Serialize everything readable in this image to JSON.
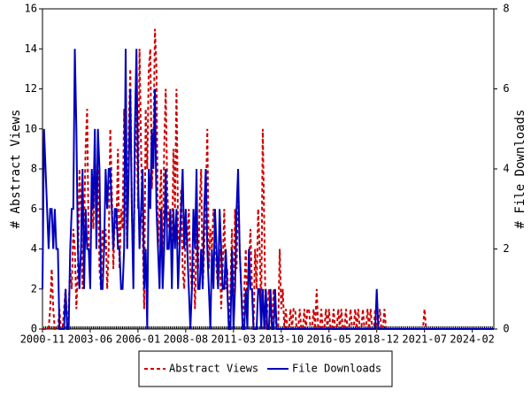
{
  "chart_data": {
    "type": "line",
    "y_label": "# Abstract Views",
    "y2_label": "# File Downloads",
    "x": [
      "2000-11",
      "2000-12",
      "2001-01",
      "2001-02",
      "2001-03",
      "2001-04",
      "2001-05",
      "2001-06",
      "2001-07",
      "2001-08",
      "2001-09",
      "2001-10",
      "2001-11",
      "2001-12",
      "2002-01",
      "2002-02",
      "2002-03",
      "2002-04",
      "2002-05",
      "2002-06",
      "2002-07",
      "2002-08",
      "2002-09",
      "2002-10",
      "2002-11",
      "2002-12",
      "2003-01",
      "2003-02",
      "2003-03",
      "2003-04",
      "2003-05",
      "2003-06",
      "2003-07",
      "2003-08",
      "2003-09",
      "2003-10",
      "2003-11",
      "2003-12",
      "2004-01",
      "2004-02",
      "2004-03",
      "2004-04",
      "2004-05",
      "2004-06",
      "2004-07",
      "2004-08",
      "2004-09",
      "2004-10",
      "2004-11",
      "2004-12",
      "2005-01",
      "2005-02",
      "2005-03",
      "2005-04",
      "2005-05",
      "2005-06",
      "2005-07",
      "2005-08",
      "2005-09",
      "2005-10",
      "2005-11",
      "2005-12",
      "2006-01",
      "2006-02",
      "2006-03",
      "2006-04",
      "2006-05",
      "2006-06",
      "2006-07",
      "2006-08",
      "2006-09",
      "2006-10",
      "2006-11",
      "2006-12",
      "2007-01",
      "2007-02",
      "2007-03",
      "2007-04",
      "2007-05",
      "2007-06",
      "2007-07",
      "2007-08",
      "2007-09",
      "2007-10",
      "2007-11",
      "2007-12",
      "2008-01",
      "2008-02",
      "2008-03",
      "2008-04",
      "2008-05",
      "2008-06",
      "2008-07",
      "2008-08",
      "2008-09",
      "2008-10",
      "2008-11",
      "2008-12",
      "2009-01",
      "2009-02",
      "2009-03",
      "2009-04",
      "2009-05",
      "2009-06",
      "2009-07",
      "2009-08",
      "2009-09",
      "2009-10",
      "2009-11",
      "2009-12",
      "2010-01",
      "2010-02",
      "2010-03",
      "2010-04",
      "2010-05",
      "2010-06",
      "2010-07",
      "2010-08",
      "2010-09",
      "2010-10",
      "2010-11",
      "2010-12",
      "2011-01",
      "2011-02",
      "2011-03",
      "2011-04",
      "2011-05",
      "2011-06",
      "2011-07",
      "2011-08",
      "2011-09",
      "2011-10",
      "2011-11",
      "2011-12",
      "2012-01",
      "2012-02",
      "2012-03",
      "2012-04",
      "2012-05",
      "2012-06",
      "2012-07",
      "2012-08",
      "2012-09",
      "2012-10",
      "2012-11",
      "2012-12",
      "2013-01",
      "2013-02",
      "2013-03",
      "2013-04",
      "2013-05",
      "2013-06",
      "2013-07",
      "2013-08",
      "2013-09",
      "2013-10",
      "2013-11",
      "2013-12",
      "2014-01",
      "2014-02",
      "2014-03",
      "2014-04",
      "2014-05",
      "2014-06",
      "2014-07",
      "2014-08",
      "2014-09",
      "2014-10",
      "2014-11",
      "2014-12",
      "2015-01",
      "2015-02",
      "2015-03",
      "2015-04",
      "2015-05",
      "2015-06",
      "2015-07",
      "2015-08",
      "2015-09",
      "2015-10",
      "2015-11",
      "2015-12",
      "2016-01",
      "2016-02",
      "2016-03",
      "2016-04",
      "2016-05",
      "2016-06",
      "2016-07",
      "2016-08",
      "2016-09",
      "2016-10",
      "2016-11",
      "2016-12",
      "2017-01",
      "2017-02",
      "2017-03",
      "2017-04",
      "2017-05",
      "2017-06",
      "2017-07",
      "2017-08",
      "2017-09",
      "2017-10",
      "2017-11",
      "2017-12",
      "2018-01",
      "2018-02",
      "2018-03",
      "2018-04",
      "2018-05",
      "2018-06",
      "2018-07",
      "2018-08",
      "2018-09",
      "2018-10",
      "2018-11",
      "2018-12",
      "2019-01",
      "2019-02",
      "2019-03",
      "2019-04",
      "2019-05",
      "2019-06",
      "2019-07",
      "2019-08",
      "2019-09",
      "2019-10",
      "2019-11",
      "2019-12",
      "2020-01",
      "2020-02",
      "2020-03",
      "2020-04",
      "2020-05",
      "2020-06",
      "2020-07",
      "2020-08",
      "2020-09",
      "2020-10",
      "2020-11",
      "2020-12",
      "2021-01",
      "2021-02",
      "2021-03",
      "2021-04",
      "2021-05",
      "2021-06",
      "2021-07",
      "2021-08",
      "2021-09",
      "2021-10",
      "2021-11",
      "2021-12",
      "2022-01",
      "2022-02",
      "2022-03",
      "2022-04",
      "2022-05",
      "2022-06",
      "2022-07",
      "2022-08",
      "2022-09",
      "2022-10",
      "2022-11",
      "2022-12",
      "2023-01",
      "2023-02",
      "2023-03",
      "2023-04",
      "2023-05",
      "2023-06",
      "2023-07",
      "2023-08",
      "2023-09",
      "2023-10",
      "2023-11",
      "2023-12",
      "2024-01",
      "2024-02",
      "2024-03",
      "2024-04",
      "2024-05",
      "2024-06",
      "2024-07",
      "2024-08",
      "2024-09",
      "2024-10",
      "2024-11",
      "2024-12",
      "2025-01",
      "2025-02",
      "2025-03",
      "2025-04"
    ],
    "series": [
      {
        "name": "Abstract Views",
        "color": "#cc0000",
        "dashed": true,
        "axis": "y",
        "values": [
          0,
          0,
          0,
          0,
          0,
          1,
          3,
          1,
          0,
          0,
          0,
          1,
          0,
          0,
          1,
          2,
          0,
          1,
          3,
          2,
          5,
          4,
          1,
          3,
          8,
          6,
          2,
          5,
          9,
          11,
          4,
          3,
          7,
          5,
          9,
          6,
          8,
          3,
          2,
          5,
          4,
          5,
          2,
          4,
          10,
          7,
          3,
          6,
          5,
          9,
          3,
          6,
          5,
          11,
          7,
          4,
          10,
          13,
          6,
          3,
          8,
          12,
          6,
          14,
          9,
          5,
          1,
          11,
          8,
          13,
          14,
          7,
          9,
          15,
          13,
          4,
          6,
          8,
          3,
          9,
          12,
          7,
          5,
          6,
          3,
          9,
          6,
          12,
          5,
          4,
          7,
          3,
          2,
          5,
          4,
          6,
          3,
          2,
          4,
          1,
          5,
          3,
          6,
          8,
          2,
          4,
          6,
          10,
          3,
          5,
          4,
          6,
          5,
          3,
          2,
          4,
          1,
          3,
          6,
          2,
          3,
          0,
          2,
          5,
          1,
          6,
          3,
          7,
          4,
          2,
          0,
          2,
          4,
          1,
          3,
          5,
          2,
          0,
          4,
          2,
          6,
          4,
          1,
          10,
          5,
          0,
          1,
          2,
          1,
          0,
          2,
          1,
          0,
          0,
          4,
          1,
          2,
          0,
          1,
          0,
          0,
          1,
          0,
          1,
          1,
          0,
          0,
          1,
          0,
          0,
          1,
          0,
          1,
          1,
          0,
          0,
          1,
          0,
          2,
          0,
          0,
          1,
          0,
          0,
          1,
          0,
          1,
          0,
          0,
          1,
          0,
          0,
          1,
          0,
          1,
          0,
          0,
          1,
          0,
          0,
          1,
          0,
          0,
          1,
          0,
          1,
          0,
          0,
          1,
          0,
          0,
          1,
          0,
          1,
          0,
          0,
          1,
          0,
          0,
          1,
          0,
          0,
          1,
          0,
          0,
          0,
          0,
          0,
          0,
          0,
          0,
          0,
          0,
          0,
          0,
          0,
          0,
          0,
          0,
          0,
          0,
          0,
          0,
          0,
          0,
          0,
          0,
          0,
          1,
          0,
          0,
          0,
          0,
          0,
          0,
          0,
          0,
          0,
          0,
          0,
          0,
          0,
          0,
          0,
          0,
          0,
          0,
          0,
          0,
          0,
          0,
          0,
          0,
          0,
          0,
          0,
          0,
          0,
          0,
          0,
          0,
          0,
          0,
          0,
          0,
          0,
          0,
          0,
          0,
          0,
          0,
          0,
          0,
          0
        ]
      },
      {
        "name": "File Downloads",
        "color": "#0000bb",
        "dashed": false,
        "axis": "y2",
        "values": [
          1,
          5,
          4,
          3,
          2,
          3,
          3,
          2,
          3,
          2,
          2,
          0,
          0,
          0,
          0,
          1,
          0,
          0,
          2,
          3,
          3,
          7,
          5,
          2,
          1,
          2,
          4,
          1,
          3,
          2,
          2,
          1,
          4,
          3,
          5,
          2,
          5,
          4,
          1,
          1,
          2,
          4,
          3,
          4,
          4,
          3,
          2,
          3,
          3,
          2,
          2,
          1,
          1,
          2,
          7,
          2,
          4,
          6,
          3,
          1,
          5,
          7,
          4,
          2,
          3,
          4,
          1,
          2,
          0,
          4,
          3,
          5,
          4,
          6,
          3,
          2,
          1,
          3,
          1,
          2,
          4,
          2,
          2,
          3,
          1,
          3,
          2,
          3,
          1,
          2,
          3,
          4,
          2,
          3,
          2,
          1,
          0,
          1,
          3,
          2,
          4,
          1,
          1,
          2,
          1,
          3,
          4,
          2,
          1,
          0,
          2,
          1,
          3,
          2,
          1,
          3,
          2,
          1,
          1,
          2,
          1,
          0,
          0,
          2,
          0,
          1,
          3,
          4,
          2,
          1,
          0,
          0,
          1,
          0,
          2,
          1,
          1,
          0,
          0,
          0,
          1,
          1,
          0,
          1,
          0,
          1,
          0,
          0,
          1,
          0,
          0,
          1,
          0,
          0,
          0,
          0,
          0,
          0,
          0,
          0,
          0,
          0,
          0,
          0,
          0,
          0,
          0,
          0,
          0,
          0,
          0,
          0,
          0,
          0,
          0,
          0,
          0,
          0,
          0,
          0,
          0,
          0,
          0,
          0,
          0,
          0,
          0,
          0,
          0,
          0,
          0,
          0,
          0,
          0,
          0,
          0,
          0,
          0,
          0,
          0,
          0,
          0,
          0,
          0,
          0,
          0,
          0,
          0,
          0,
          0,
          0,
          0,
          0,
          0,
          0,
          0,
          0,
          1,
          0,
          0,
          0,
          0,
          0,
          0,
          0,
          0,
          0,
          0,
          0,
          0,
          0,
          0,
          0,
          0,
          0,
          0,
          0,
          0,
          0,
          0,
          0,
          0,
          0,
          0,
          0,
          0,
          0,
          0,
          0,
          0,
          0,
          0,
          0,
          0,
          0,
          0,
          0,
          0,
          0,
          0,
          0,
          0,
          0,
          0,
          0,
          0,
          0,
          0,
          0,
          0,
          0,
          0,
          0,
          0,
          0,
          0,
          0,
          0,
          0,
          0,
          0,
          0,
          0,
          0,
          0,
          0,
          0,
          0,
          0,
          0,
          0,
          0,
          0,
          0
        ]
      }
    ],
    "xlim": [
      "2000-11",
      "2025-04"
    ],
    "xticks": [
      "2000-11",
      "2003-06",
      "2006-01",
      "2008-08",
      "2011-03",
      "2013-10",
      "2016-05",
      "2018-12",
      "2021-07",
      "2024-02"
    ],
    "ylim": [
      0,
      16
    ],
    "yticks": [
      0,
      2,
      4,
      6,
      8,
      10,
      12,
      14,
      16
    ],
    "y2lim": [
      0,
      8
    ],
    "y2ticks": [
      0,
      2,
      4,
      6,
      8
    ]
  }
}
